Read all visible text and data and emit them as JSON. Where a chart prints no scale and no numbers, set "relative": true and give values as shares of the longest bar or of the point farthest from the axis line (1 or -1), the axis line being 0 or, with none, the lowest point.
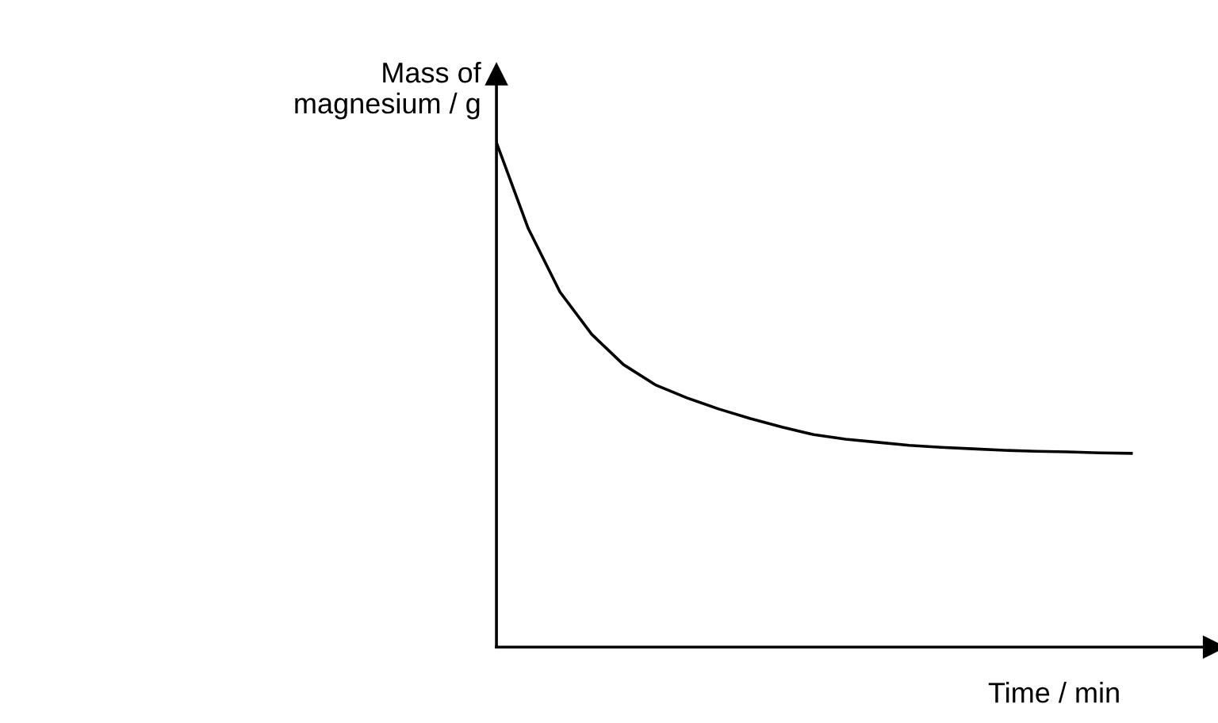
{
  "chart_data": {
    "type": "line",
    "relative": true,
    "xlabel": "Time / min",
    "ylabel": "Mass of\nmagnesium / g",
    "categories": [
      null,
      null,
      null,
      null,
      null,
      null,
      null,
      null,
      null,
      null,
      null,
      null,
      null,
      null,
      null,
      null,
      null,
      null,
      null,
      null,
      null
    ],
    "series": [
      {
        "color": "#000000",
        "values": [
          1.0,
          0.83,
          0.704,
          0.62,
          0.56,
          0.52,
          0.494,
          0.472,
          0.453,
          0.436,
          0.421,
          0.412,
          0.406,
          0.4,
          0.396,
          0.393,
          0.39,
          0.388,
          0.387,
          0.385,
          0.384
        ]
      }
    ],
    "marker": "none",
    "line_style": "solid",
    "legend": false
  }
}
